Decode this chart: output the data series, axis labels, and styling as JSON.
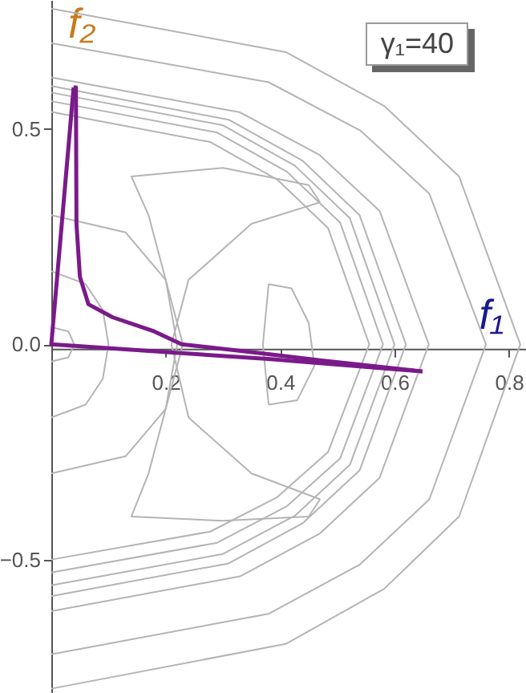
{
  "chart_data": {
    "type": "line",
    "xlabel": "f₁",
    "ylabel": "f₂",
    "annotations": [
      "γ₁=40"
    ],
    "xlim": [
      0,
      0.83
    ],
    "ylim": [
      -0.81,
      0.8
    ],
    "xticks": [
      0.2,
      0.4,
      0.6,
      0.8
    ],
    "yticks": [
      {
        "value": -0.5,
        "label": "−0.5"
      },
      {
        "value": 0,
        "label": "0.0"
      },
      0.5
    ],
    "grid": false,
    "marker": "none",
    "line_style": "solid",
    "series": [
      {
        "color": "#b4b4b4",
        "x": [
          0,
          0.278,
          0.395,
          0.484,
          0.556,
          0.484,
          0.395,
          0.278,
          0
        ],
        "values": [
          0.54,
          0.47,
          0.383,
          0.27,
          0,
          -0.25,
          -0.355,
          -0.435,
          -0.5
        ]
      },
      {
        "color": "#b4b4b4",
        "x": [
          0,
          0.29,
          0.412,
          0.505,
          0.58,
          0.505,
          0.412,
          0.29,
          0
        ],
        "values": [
          0.565,
          0.492,
          0.401,
          0.283,
          0,
          -0.265,
          -0.376,
          -0.461,
          -0.53
        ]
      },
      {
        "color": "#b4b4b4",
        "x": [
          0,
          0.3,
          0.426,
          0.522,
          0.6,
          0.522,
          0.426,
          0.3,
          0
        ],
        "values": [
          0.585,
          0.509,
          0.415,
          0.293,
          0,
          -0.28,
          -0.398,
          -0.487,
          -0.56
        ]
      },
      {
        "color": "#b4b4b4",
        "x": [
          0,
          0.31,
          0.44,
          0.539,
          0.62,
          0.539,
          0.44,
          0.31,
          0
        ],
        "values": [
          0.6,
          0.522,
          0.426,
          0.3,
          0,
          -0.293,
          -0.415,
          -0.509,
          -0.585
        ]
      },
      {
        "color": "#b4b4b4",
        "x": [
          0,
          0.33,
          0.469,
          0.574,
          0.66,
          0.574,
          0.469,
          0.33,
          0
        ],
        "values": [
          0.62,
          0.539,
          0.44,
          0.31,
          0,
          -0.31,
          -0.44,
          -0.539,
          -0.62
        ]
      },
      {
        "color": "#b4b4b4",
        "x": [
          0,
          0.38,
          0.54,
          0.661,
          0.76,
          0.661,
          0.54,
          0.38,
          0
        ],
        "values": [
          0.7,
          0.609,
          0.497,
          0.35,
          0,
          -0.36,
          -0.511,
          -0.626,
          -0.72
        ]
      },
      {
        "color": "#b4b4b4",
        "x": [
          0,
          0.41,
          0.582,
          0.713,
          0.82,
          0.713,
          0.582,
          0.41,
          0
        ],
        "values": [
          0.78,
          0.679,
          0.554,
          0.39,
          0,
          -0.4,
          -0.568,
          -0.696,
          -0.8
        ]
      },
      {
        "color": "#b4b4b4",
        "x": [
          0,
          0.13,
          0.2,
          0.22,
          0.2,
          0.13,
          0
        ],
        "values": [
          0.3,
          0.26,
          0.15,
          0,
          -0.15,
          -0.26,
          -0.3
        ]
      },
      {
        "color": "#b4b4b4",
        "x": [
          0,
          0.06,
          0.09,
          0.1,
          0.09,
          0.06,
          0
        ],
        "values": [
          0.17,
          0.14,
          0.08,
          0,
          -0.08,
          -0.14,
          -0.17
        ]
      },
      {
        "color": "#b4b4b4",
        "x": [
          0,
          0.03,
          0.04,
          0.03,
          0
        ],
        "values": [
          0.04,
          0.03,
          0,
          -0.03,
          -0.04
        ]
      },
      {
        "color": "#b4b4b4",
        "x": [
          0.47,
          0.45,
          0.3,
          0.14,
          0.17,
          0.23
        ],
        "values": [
          0.33,
          0.37,
          0.41,
          0.39,
          0.3,
          0
        ]
      },
      {
        "color": "#b4b4b4",
        "x": [
          0.23,
          0.17,
          0.14,
          0.3,
          0.45,
          0.47
        ],
        "values": [
          0,
          -0.3,
          -0.4,
          -0.41,
          -0.4,
          -0.36
        ]
      },
      {
        "color": "#b4b4b4",
        "x": [
          0.47,
          0.35,
          0.24,
          0.21,
          0.24,
          0.35,
          0.47
        ],
        "values": [
          0.33,
          0.28,
          0.15,
          0,
          -0.17,
          -0.3,
          -0.36
        ]
      },
      {
        "color": "#b4b4b4",
        "x": [
          0.38,
          0.42,
          0.45,
          0.46,
          0.43,
          0.38
        ],
        "values": [
          0.14,
          0.13,
          0.05,
          -0.05,
          -0.13,
          -0.14
        ]
      },
      {
        "color": "#b4b4b4",
        "x": [
          0.38,
          0.37,
          0.38
        ],
        "values": [
          -0.14,
          0,
          0.14
        ]
      },
      {
        "color": "#7b1a8b",
        "x": [
          0.039,
          0,
          0.379,
          0.649
        ],
        "values": [
          0.597,
          0,
          -0.034,
          -0.063
        ]
      },
      {
        "color": "#7b1a8b",
        "x": [
          0.039,
          0.043,
          0.044,
          0.05,
          0.065,
          0.107,
          0.18,
          0.228,
          0.35,
          0.47,
          0.649
        ],
        "values": [
          0.597,
          0.597,
          0.28,
          0.157,
          0.093,
          0.063,
          0.03,
          0,
          -0.018,
          -0.037,
          -0.063
        ]
      }
    ]
  }
}
